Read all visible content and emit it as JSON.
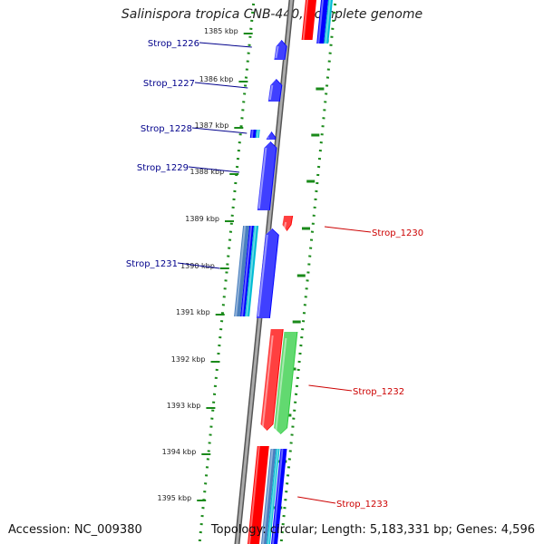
{
  "title": "Salinispora tropica CNB-440, complete genome",
  "footer": {
    "accession": "Accession: NC_009380",
    "topology": "Topology: circular; Length: 5,183,331 bp; Genes: 4,596"
  },
  "colors": {
    "forward_strand": "#0000ff",
    "reverse_strand": "#ff0000",
    "other_feature": "#2ecc40",
    "rna_feature": "#00bcd4",
    "tick_green": "#1a8a1a",
    "backbone": "#888888",
    "left_label": "#00008b",
    "right_label": "#cc0000"
  },
  "kbp_ticks": [
    {
      "label": "1385 kbp"
    },
    {
      "label": "1386 kbp"
    },
    {
      "label": "1387 kbp"
    },
    {
      "label": "1388 kbp"
    },
    {
      "label": "1389 kbp"
    },
    {
      "label": "1390 kbp"
    },
    {
      "label": "1391 kbp"
    },
    {
      "label": "1392 kbp"
    },
    {
      "label": "1393 kbp"
    },
    {
      "label": "1394 kbp"
    },
    {
      "label": "1395 kbp"
    }
  ],
  "gene_labels_left": [
    {
      "text": "Strop_1226"
    },
    {
      "text": "Strop_1227"
    },
    {
      "text": "Strop_1228"
    },
    {
      "text": "Strop_1229"
    },
    {
      "text": "Strop_1231"
    }
  ],
  "gene_labels_right": [
    {
      "text": "Strop_1230"
    },
    {
      "text": "Strop_1232"
    },
    {
      "text": "Strop_1233"
    }
  ]
}
